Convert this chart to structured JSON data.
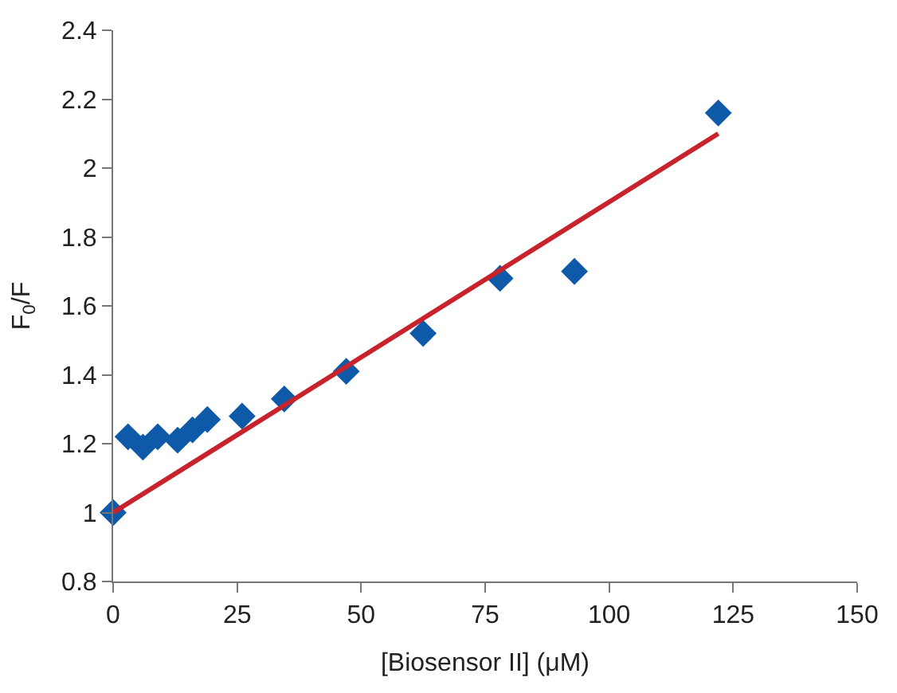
{
  "chart_data": {
    "type": "scatter",
    "xlabel": "[Biosensor II] (μM)",
    "ylabel": "F$_{0}$/F",
    "xlim": [
      0,
      150
    ],
    "xticks": [
      0,
      25,
      50,
      75,
      100,
      125,
      150
    ],
    "ylim": [
      0.8,
      2.4
    ],
    "yticks": [
      0.8,
      1,
      1.2,
      1.4,
      1.6,
      1.8,
      2,
      2.2,
      2.4
    ],
    "marker": "diamond",
    "series": [
      {
        "color": "#0f5aa8",
        "x": [
          0,
          3,
          6,
          9,
          13,
          16,
          19,
          26,
          34.5,
          47,
          62.5,
          78,
          93,
          122
        ],
        "values": [
          1.0,
          1.22,
          1.19,
          1.22,
          1.21,
          1.24,
          1.27,
          1.28,
          1.33,
          1.41,
          1.52,
          1.68,
          1.7,
          2.16
        ]
      },
      {
        "type": "line",
        "color": "#c8232c",
        "x": [
          0,
          122
        ],
        "values": [
          1.0,
          2.1
        ],
        "marker": "none"
      }
    ]
  }
}
